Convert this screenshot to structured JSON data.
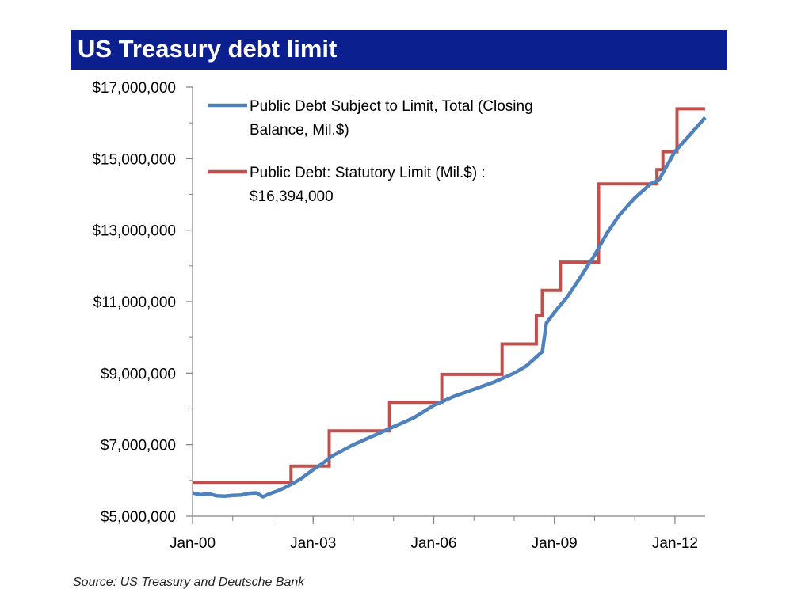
{
  "title": "US Treasury debt limit",
  "source": "Source: US Treasury and Deutsche Bank",
  "colors": {
    "title_bg": "#0b1f8f",
    "debt_line": "#4f81bd",
    "limit_line": "#c0504d",
    "axis": "#808080"
  },
  "chart_data": {
    "type": "line",
    "title": "US Treasury debt limit",
    "xlabel": "",
    "ylabel": "",
    "xlim": [
      2000.0,
      2012.75
    ],
    "ylim": [
      5000000,
      17000000
    ],
    "x_ticks": [
      {
        "x": 2000,
        "label": "Jan-00"
      },
      {
        "x": 2003,
        "label": "Jan-03"
      },
      {
        "x": 2006,
        "label": "Jan-06"
      },
      {
        "x": 2009,
        "label": "Jan-09"
      },
      {
        "x": 2012,
        "label": "Jan-12"
      }
    ],
    "y_ticks": [
      {
        "y": 5000000,
        "label": "$5,000,000"
      },
      {
        "y": 7000000,
        "label": "$7,000,000"
      },
      {
        "y": 9000000,
        "label": "$9,000,000"
      },
      {
        "y": 11000000,
        "label": "$11,000,000"
      },
      {
        "y": 13000000,
        "label": "$13,000,000"
      },
      {
        "y": 15000000,
        "label": "$15,000,000"
      },
      {
        "y": 17000000,
        "label": "$17,000,000"
      }
    ],
    "grid": false,
    "legend_position": "top-left",
    "series": [
      {
        "name": "Public Debt Subject to Limit, Total (Closing Balance, Mil.$)",
        "legend_lines": [
          "Public Debt Subject to Limit, Total (Closing",
          "Balance, Mil.$)"
        ],
        "color": "#4f81bd",
        "points": [
          [
            2000.0,
            5650000
          ],
          [
            2000.2,
            5600000
          ],
          [
            2000.4,
            5630000
          ],
          [
            2000.6,
            5570000
          ],
          [
            2000.8,
            5560000
          ],
          [
            2001.0,
            5580000
          ],
          [
            2001.2,
            5590000
          ],
          [
            2001.4,
            5640000
          ],
          [
            2001.6,
            5650000
          ],
          [
            2001.75,
            5540000
          ],
          [
            2001.9,
            5620000
          ],
          [
            2002.1,
            5700000
          ],
          [
            2002.3,
            5800000
          ],
          [
            2002.5,
            5920000
          ],
          [
            2002.7,
            6050000
          ],
          [
            2003.0,
            6300000
          ],
          [
            2003.2,
            6450000
          ],
          [
            2003.5,
            6700000
          ],
          [
            2004.0,
            7000000
          ],
          [
            2004.5,
            7250000
          ],
          [
            2005.0,
            7500000
          ],
          [
            2005.5,
            7750000
          ],
          [
            2006.0,
            8100000
          ],
          [
            2006.5,
            8350000
          ],
          [
            2007.0,
            8550000
          ],
          [
            2007.5,
            8750000
          ],
          [
            2008.0,
            9000000
          ],
          [
            2008.3,
            9200000
          ],
          [
            2008.5,
            9400000
          ],
          [
            2008.7,
            9600000
          ],
          [
            2008.8,
            10400000
          ],
          [
            2009.0,
            10700000
          ],
          [
            2009.3,
            11100000
          ],
          [
            2009.6,
            11600000
          ],
          [
            2010.0,
            12300000
          ],
          [
            2010.3,
            12900000
          ],
          [
            2010.6,
            13400000
          ],
          [
            2011.0,
            13900000
          ],
          [
            2011.4,
            14300000
          ],
          [
            2011.6,
            14400000
          ],
          [
            2012.0,
            15200000
          ],
          [
            2012.4,
            15700000
          ],
          [
            2012.75,
            16150000
          ]
        ]
      },
      {
        "name": "Public Debt: Statutory Limit (Mil.$) : $16,394,000",
        "legend_lines": [
          "Public Debt: Statutory Limit (Mil.$) :",
          "$16,394,000"
        ],
        "color": "#c0504d",
        "points": [
          [
            2000.0,
            5950000
          ],
          [
            2002.45,
            5950000
          ],
          [
            2002.45,
            6400000
          ],
          [
            2003.4,
            6400000
          ],
          [
            2003.4,
            7384000
          ],
          [
            2004.9,
            7384000
          ],
          [
            2004.9,
            8184000
          ],
          [
            2006.2,
            8184000
          ],
          [
            2006.2,
            8965000
          ],
          [
            2007.7,
            8965000
          ],
          [
            2007.7,
            9815000
          ],
          [
            2008.55,
            9815000
          ],
          [
            2008.55,
            10615000
          ],
          [
            2008.7,
            10615000
          ],
          [
            2008.7,
            11315000
          ],
          [
            2009.15,
            11315000
          ],
          [
            2009.15,
            12104000
          ],
          [
            2010.1,
            12104000
          ],
          [
            2010.1,
            14294000
          ],
          [
            2011.55,
            14294000
          ],
          [
            2011.55,
            14694000
          ],
          [
            2011.7,
            14694000
          ],
          [
            2011.7,
            15194000
          ],
          [
            2012.05,
            15194000
          ],
          [
            2012.05,
            16394000
          ],
          [
            2012.75,
            16394000
          ]
        ]
      }
    ]
  }
}
